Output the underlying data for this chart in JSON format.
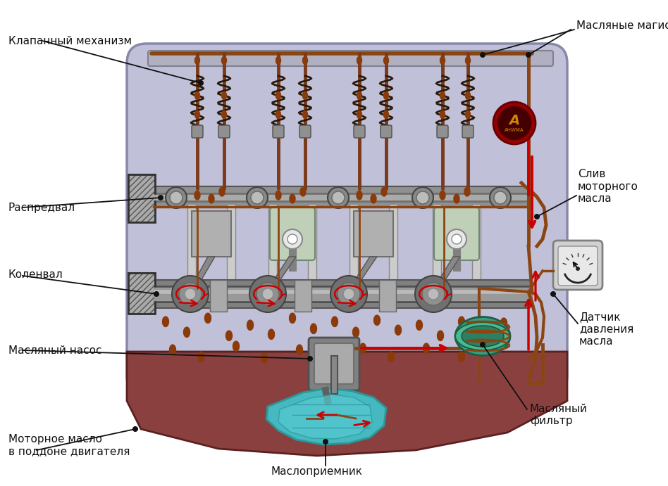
{
  "bg_color": "#ffffff",
  "engine_bg": "#c0c0d8",
  "oil_pan_color": "#8B4040",
  "oil_line_color": "#8B4513",
  "arrow_color": "#cc0000",
  "piston_color": "#c8d8c0",
  "crankshaft_color": "#909090",
  "oil_filter_color": "#3a9d7f",
  "oil_pickup_color": "#45b8c0",
  "pressure_gauge_color": "#cccccc",
  "valve_stem_color": "#7B3A1A",
  "spring_color": "#5a3a2a",
  "drop_color": "#8B3A0A",
  "gear_color": "#888888",
  "dark_metal": "#505050",
  "light_metal": "#bbbbbb",
  "labels": {
    "valve_mechanism": "Клапанный механизм",
    "oil_mains": "Масляные магистрали",
    "camshaft": "Распредвал",
    "oil_drain": "Слив\nмоторного\nмасла",
    "crankshaft": "Коленвал",
    "pressure_sensor": "Датчик\nдавления\nмасла",
    "oil_pump": "Масляный насос",
    "oil_filter": "Масляный\nфильтр",
    "oil_pan": "Моторное масло\nв поддоне двигателя",
    "oil_pickup": "Маслоприемник"
  },
  "figsize": [
    9.48,
    6.91
  ],
  "dpi": 100
}
